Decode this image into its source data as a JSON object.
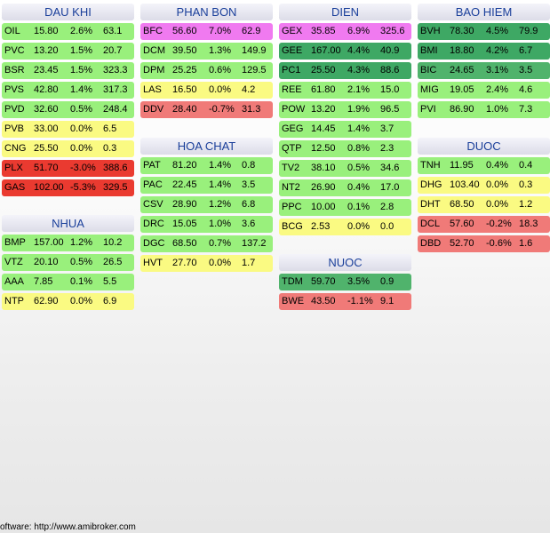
{
  "colors": {
    "bright_green": "#99f07c",
    "mid_green": "#50b36c",
    "dark_green": "#3ea864",
    "yellow": "#fafa82",
    "magenta": "#f07af0",
    "light_red": "#f07a78",
    "red": "#ea3a30"
  },
  "groups": [
    {
      "name": "DAU KHI",
      "rows": [
        {
          "sym": "OIL",
          "price": "15.80",
          "pct": "2.6%",
          "vol": "63.1",
          "color": "#99f07c"
        },
        {
          "sym": "PVC",
          "price": "13.20",
          "pct": "1.5%",
          "vol": "20.7",
          "color": "#99f07c"
        },
        {
          "sym": "BSR",
          "price": "23.45",
          "pct": "1.5%",
          "vol": "323.3",
          "color": "#99f07c"
        },
        {
          "sym": "PVS",
          "price": "42.80",
          "pct": "1.4%",
          "vol": "317.3",
          "color": "#99f07c"
        },
        {
          "sym": "PVD",
          "price": "32.60",
          "pct": "0.5%",
          "vol": "248.4",
          "color": "#99f07c"
        },
        {
          "sym": "PVB",
          "price": "33.00",
          "pct": "0.0%",
          "vol": "6.5",
          "color": "#fafa82"
        },
        {
          "sym": "CNG",
          "price": "25.50",
          "pct": "0.0%",
          "vol": "0.3",
          "color": "#fafa82"
        },
        {
          "sym": "PLX",
          "price": "51.70",
          "pct": "-3.0%",
          "vol": "388.6",
          "color": "#ea3a30"
        },
        {
          "sym": "GAS",
          "price": "102.00",
          "pct": "-5.3%",
          "vol": "329.5",
          "color": "#ea3a30"
        }
      ]
    },
    {
      "name": "NHUA",
      "rows": [
        {
          "sym": "BMP",
          "price": "157.00",
          "pct": "1.2%",
          "vol": "10.2",
          "color": "#99f07c"
        },
        {
          "sym": "VTZ",
          "price": "20.10",
          "pct": "0.5%",
          "vol": "26.5",
          "color": "#99f07c"
        },
        {
          "sym": "AAA",
          "price": "7.85",
          "pct": "0.1%",
          "vol": "5.5",
          "color": "#99f07c"
        },
        {
          "sym": "NTP",
          "price": "62.90",
          "pct": "0.0%",
          "vol": "6.9",
          "color": "#fafa82"
        }
      ]
    },
    {
      "name": "PHAN BON",
      "rows": [
        {
          "sym": "BFC",
          "price": "56.60",
          "pct": "7.0%",
          "vol": "62.9",
          "color": "#f07af0"
        },
        {
          "sym": "DCM",
          "price": "39.50",
          "pct": "1.3%",
          "vol": "149.9",
          "color": "#99f07c"
        },
        {
          "sym": "DPM",
          "price": "25.25",
          "pct": "0.6%",
          "vol": "129.5",
          "color": "#99f07c"
        },
        {
          "sym": "LAS",
          "price": "16.50",
          "pct": "0.0%",
          "vol": "4.2",
          "color": "#fafa82"
        },
        {
          "sym": "DDV",
          "price": "28.40",
          "pct": "-0.7%",
          "vol": "31.3",
          "color": "#f07a78"
        }
      ]
    },
    {
      "name": "HOA CHAT",
      "rows": [
        {
          "sym": "PAT",
          "price": "81.20",
          "pct": "1.4%",
          "vol": "0.8",
          "color": "#99f07c"
        },
        {
          "sym": "PAC",
          "price": "22.45",
          "pct": "1.4%",
          "vol": "3.5",
          "color": "#99f07c"
        },
        {
          "sym": "CSV",
          "price": "28.90",
          "pct": "1.2%",
          "vol": "6.8",
          "color": "#99f07c"
        },
        {
          "sym": "DRC",
          "price": "15.05",
          "pct": "1.0%",
          "vol": "3.6",
          "color": "#99f07c"
        },
        {
          "sym": "DGC",
          "price": "68.50",
          "pct": "0.7%",
          "vol": "137.2",
          "color": "#99f07c"
        },
        {
          "sym": "HVT",
          "price": "27.70",
          "pct": "0.0%",
          "vol": "1.7",
          "color": "#fafa82"
        }
      ]
    },
    {
      "name": "DIEN",
      "rows": [
        {
          "sym": "GEX",
          "price": "35.85",
          "pct": "6.9%",
          "vol": "325.6",
          "color": "#f07af0"
        },
        {
          "sym": "GEE",
          "price": "167.00",
          "pct": "4.4%",
          "vol": "40.9",
          "color": "#3ea864"
        },
        {
          "sym": "PC1",
          "price": "25.50",
          "pct": "4.3%",
          "vol": "88.6",
          "color": "#3ea864"
        },
        {
          "sym": "REE",
          "price": "61.80",
          "pct": "2.1%",
          "vol": "15.0",
          "color": "#99f07c"
        },
        {
          "sym": "POW",
          "price": "13.20",
          "pct": "1.9%",
          "vol": "96.5",
          "color": "#99f07c"
        },
        {
          "sym": "GEG",
          "price": "14.45",
          "pct": "1.4%",
          "vol": "3.7",
          "color": "#99f07c"
        },
        {
          "sym": "QTP",
          "price": "12.50",
          "pct": "0.8%",
          "vol": "2.3",
          "color": "#99f07c"
        },
        {
          "sym": "TV2",
          "price": "38.10",
          "pct": "0.5%",
          "vol": "34.6",
          "color": "#99f07c"
        },
        {
          "sym": "NT2",
          "price": "26.90",
          "pct": "0.4%",
          "vol": "17.0",
          "color": "#99f07c"
        },
        {
          "sym": "PPC",
          "price": "10.00",
          "pct": "0.1%",
          "vol": "2.8",
          "color": "#99f07c"
        },
        {
          "sym": "BCG",
          "price": "2.53",
          "pct": "0.0%",
          "vol": "0.0",
          "color": "#fafa82"
        }
      ]
    },
    {
      "name": "NUOC",
      "rows": [
        {
          "sym": "TDM",
          "price": "59.70",
          "pct": "3.5%",
          "vol": "0.9",
          "color": "#50b36c"
        },
        {
          "sym": "BWE",
          "price": "43.50",
          "pct": "-1.1%",
          "vol": "9.1",
          "color": "#f07a78"
        }
      ]
    },
    {
      "name": "BAO HIEM",
      "rows": [
        {
          "sym": "BVH",
          "price": "78.30",
          "pct": "4.5%",
          "vol": "79.9",
          "color": "#3ea864"
        },
        {
          "sym": "BMI",
          "price": "18.80",
          "pct": "4.2%",
          "vol": "6.7",
          "color": "#3ea864"
        },
        {
          "sym": "BIC",
          "price": "24.65",
          "pct": "3.1%",
          "vol": "3.5",
          "color": "#50b36c"
        },
        {
          "sym": "MIG",
          "price": "19.05",
          "pct": "2.4%",
          "vol": "4.6",
          "color": "#99f07c"
        },
        {
          "sym": "PVI",
          "price": "86.90",
          "pct": "1.0%",
          "vol": "7.3",
          "color": "#99f07c"
        }
      ]
    },
    {
      "name": "DUOC",
      "rows": [
        {
          "sym": "TNH",
          "price": "11.95",
          "pct": "0.4%",
          "vol": "0.4",
          "color": "#99f07c"
        },
        {
          "sym": "DHG",
          "price": "103.40",
          "pct": "0.0%",
          "vol": "0.3",
          "color": "#fafa82"
        },
        {
          "sym": "DHT",
          "price": "68.50",
          "pct": "0.0%",
          "vol": "1.2",
          "color": "#fafa82"
        },
        {
          "sym": "DCL",
          "price": "57.60",
          "pct": "-0.2%",
          "vol": "18.3",
          "color": "#f07a78"
        },
        {
          "sym": "DBD",
          "price": "52.70",
          "pct": "-0.6%",
          "vol": "1.6",
          "color": "#f07a78"
        }
      ]
    }
  ],
  "footer": "oftware: http://www.amibroker.com"
}
